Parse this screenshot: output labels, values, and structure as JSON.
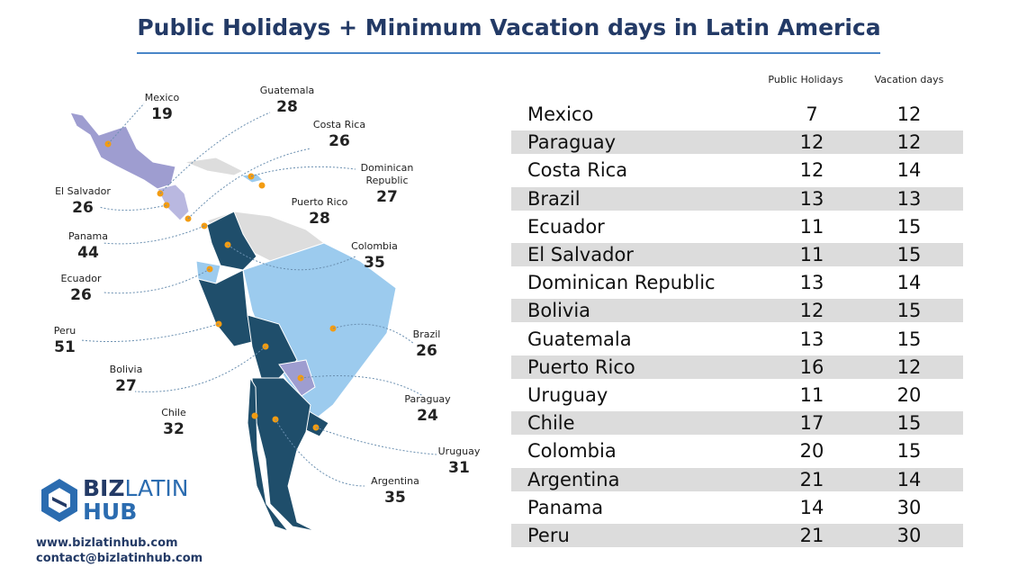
{
  "header": {
    "title": "Public Holidays + Minimum Vacation days in Latin America"
  },
  "map": {
    "labels": [
      {
        "name": "Mexico",
        "total": 19
      },
      {
        "name": "Guatemala",
        "total": 28
      },
      {
        "name": "Costa Rica",
        "total": 26
      },
      {
        "name": "Dominican Republic",
        "total": 27
      },
      {
        "name": "El Salvador",
        "total": 26
      },
      {
        "name": "Puerto Rico",
        "total": 28
      },
      {
        "name": "Panama",
        "total": 44
      },
      {
        "name": "Colombia",
        "total": 35
      },
      {
        "name": "Ecuador",
        "total": 26
      },
      {
        "name": "Peru",
        "total": 51
      },
      {
        "name": "Brazil",
        "total": 26
      },
      {
        "name": "Bolivia",
        "total": 27
      },
      {
        "name": "Paraguay",
        "total": 24
      },
      {
        "name": "Chile",
        "total": 32
      },
      {
        "name": "Uruguay",
        "total": 31
      },
      {
        "name": "Argentina",
        "total": 35
      }
    ]
  },
  "table": {
    "columns": [
      "Public Holidays",
      "Vacation days"
    ],
    "rows": [
      [
        "Mexico",
        7,
        12
      ],
      [
        "Paraguay",
        12,
        12
      ],
      [
        "Costa Rica",
        12,
        14
      ],
      [
        "Brazil",
        13,
        13
      ],
      [
        "Ecuador",
        11,
        15
      ],
      [
        "El Salvador",
        11,
        15
      ],
      [
        "Dominican Republic",
        13,
        14
      ],
      [
        "Bolivia",
        12,
        15
      ],
      [
        "Guatemala",
        13,
        15
      ],
      [
        "Puerto Rico",
        16,
        12
      ],
      [
        "Uruguay",
        11,
        20
      ],
      [
        "Chile",
        17,
        15
      ],
      [
        "Colombia",
        20,
        15
      ],
      [
        "Argentina",
        21,
        14
      ],
      [
        "Panama",
        14,
        30
      ],
      [
        "Peru",
        21,
        30
      ]
    ]
  },
  "footer": {
    "logo": {
      "part1": "BIZ",
      "part2": "LATIN",
      "part3": "HUB"
    },
    "website": "www.bizlatinhub.com",
    "email": "contact@bizlatinhub.com"
  }
}
